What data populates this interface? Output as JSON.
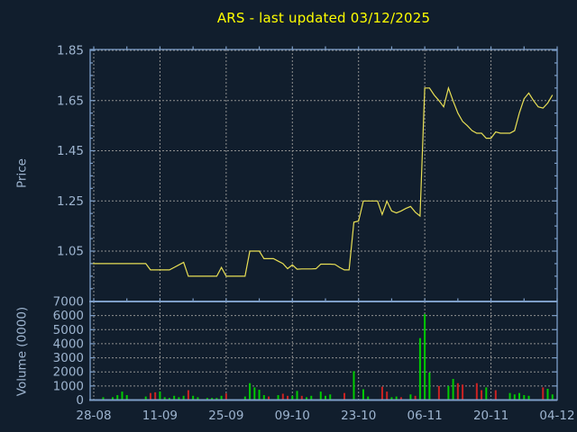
{
  "colors": {
    "background": "#111e2d",
    "frame": "#7d9ec8",
    "grid": "#909090",
    "price_line": "#e8df55",
    "title": "#ffff00",
    "label": "#9db4cf",
    "volume_up": "#00cc00",
    "volume_down": "#cc2222"
  },
  "chart_data": {
    "type": [
      "line",
      "bar"
    ],
    "title": "ARS - last updated 03/12/2025",
    "legend": "none",
    "grid": "dashed",
    "x_axis": {
      "days_total": 99,
      "tick_labels": [
        "28-08",
        "11-09",
        "25-09",
        "09-10",
        "23-10",
        "06-11",
        "20-11",
        "04-12"
      ],
      "tick_day_index": [
        1,
        15,
        29,
        43,
        57,
        71,
        85,
        99
      ],
      "minor_tick_interval_days": 7
    },
    "price_panel": {
      "ylabel": "Price",
      "tick_labels": [
        "1.85",
        "1.65",
        "1.45",
        "1.25",
        "1.05"
      ],
      "tick_values": [
        1.85,
        1.65,
        1.45,
        1.25,
        1.05
      ],
      "ylim": [
        0.85,
        1.853
      ],
      "values": [
        1.0,
        1.0,
        1.0,
        1.0,
        1.0,
        1.0,
        1.0,
        1.0,
        1.0,
        1.0,
        1.0,
        1.0,
        1.0,
        0.975,
        0.975,
        0.975,
        0.975,
        0.975,
        0.985,
        0.995,
        1.005,
        0.95,
        0.95,
        0.95,
        0.95,
        0.95,
        0.95,
        0.95,
        0.985,
        0.95,
        0.95,
        0.95,
        0.95,
        0.95,
        1.05,
        1.05,
        1.05,
        1.02,
        1.02,
        1.02,
        1.01,
        1.0,
        0.98,
        0.995,
        0.978,
        0.979,
        0.979,
        0.979,
        0.98,
        0.998,
        0.998,
        0.998,
        0.997,
        0.985,
        0.975,
        0.975,
        1.165,
        1.17,
        1.25,
        1.25,
        1.25,
        1.25,
        1.196,
        1.249,
        1.21,
        1.202,
        1.21,
        1.22,
        1.228,
        1.205,
        1.19,
        1.7,
        1.7,
        1.672,
        1.65,
        1.625,
        1.7,
        1.648,
        1.6,
        1.567,
        1.55,
        1.53,
        1.52,
        1.52,
        1.5,
        1.5,
        1.525,
        1.52,
        1.52,
        1.52,
        1.53,
        1.6,
        1.657,
        1.68,
        1.65,
        1.625,
        1.62,
        1.64,
        1.672
      ]
    },
    "volume_panel": {
      "ylabel": "Volume (0000)",
      "tick_labels": [
        "7000",
        "6000",
        "5000",
        "4000",
        "3000",
        "2000",
        "1000",
        "0"
      ],
      "tick_values": [
        7000,
        6000,
        5000,
        4000,
        3000,
        2000,
        1000,
        0
      ],
      "ylim": [
        0,
        7000
      ],
      "values": [
        0,
        0,
        0,
        200,
        0,
        200,
        350,
        600,
        350,
        0,
        0,
        0,
        250,
        500,
        550,
        600,
        200,
        150,
        300,
        200,
        300,
        700,
        300,
        200,
        0,
        150,
        150,
        150,
        300,
        470,
        0,
        0,
        0,
        250,
        1200,
        900,
        730,
        350,
        250,
        0,
        350,
        450,
        300,
        300,
        650,
        300,
        200,
        300,
        0,
        600,
        300,
        400,
        0,
        0,
        500,
        0,
        2050,
        0,
        770,
        250,
        0,
        0,
        950,
        600,
        200,
        250,
        200,
        0,
        400,
        300,
        4400,
        6100,
        1950,
        0,
        1000,
        0,
        1000,
        1500,
        1200,
        1100,
        0,
        0,
        1200,
        700,
        900,
        0,
        700,
        0,
        0,
        500,
        400,
        500,
        350,
        300,
        0,
        0,
        900,
        800,
        400
      ],
      "bar_colors": [
        "",
        "",
        "",
        "u",
        "",
        "u",
        "u",
        "u",
        "u",
        "",
        "",
        "",
        "u",
        "d",
        "d",
        "u",
        "u",
        "u",
        "u",
        "u",
        "u",
        "d",
        "u",
        "u",
        "",
        "u",
        "u",
        "u",
        "u",
        "d",
        "",
        "",
        "",
        "u",
        "u",
        "u",
        "u",
        "u",
        "d",
        "",
        "u",
        "d",
        "d",
        "u",
        "u",
        "d",
        "u",
        "u",
        "",
        "u",
        "u",
        "u",
        "",
        "",
        "d",
        "",
        "u",
        "",
        "u",
        "u",
        "",
        "",
        "d",
        "d",
        "u",
        "u",
        "d",
        "",
        "u",
        "d",
        "u",
        "u",
        "u",
        "",
        "d",
        "",
        "u",
        "u",
        "d",
        "d",
        "",
        "",
        "d",
        "d",
        "u",
        "",
        "d",
        "",
        "",
        "u",
        "u",
        "u",
        "u",
        "u",
        "",
        "",
        "d",
        "u",
        "u"
      ]
    }
  }
}
